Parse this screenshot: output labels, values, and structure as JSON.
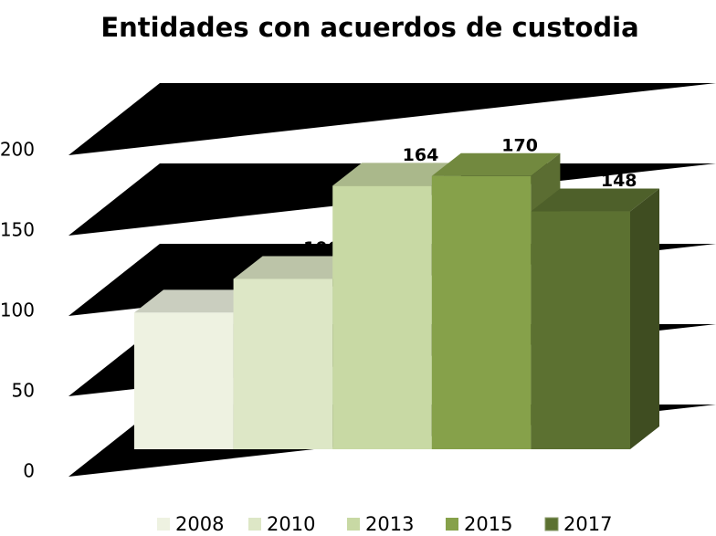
{
  "chart_data": {
    "type": "bar3d",
    "title": "Entidades con acuerdos de custodia",
    "series": [
      {
        "name": "2008",
        "color": "#eef2e1",
        "values": [
          85
        ]
      },
      {
        "name": "2010",
        "color": "#dde7c6",
        "values": [
          106
        ]
      },
      {
        "name": "2013",
        "color": "#c8d9a4",
        "values": [
          164
        ]
      },
      {
        "name": "2015",
        "color": "#86a14a",
        "values": [
          170
        ]
      },
      {
        "name": "2017",
        "color": "#5c7131",
        "values": [
          148
        ]
      }
    ],
    "ylim": [
      0,
      200
    ],
    "yticks": [
      0,
      50,
      100,
      150,
      200
    ],
    "grid": true,
    "legend": "bottom"
  }
}
